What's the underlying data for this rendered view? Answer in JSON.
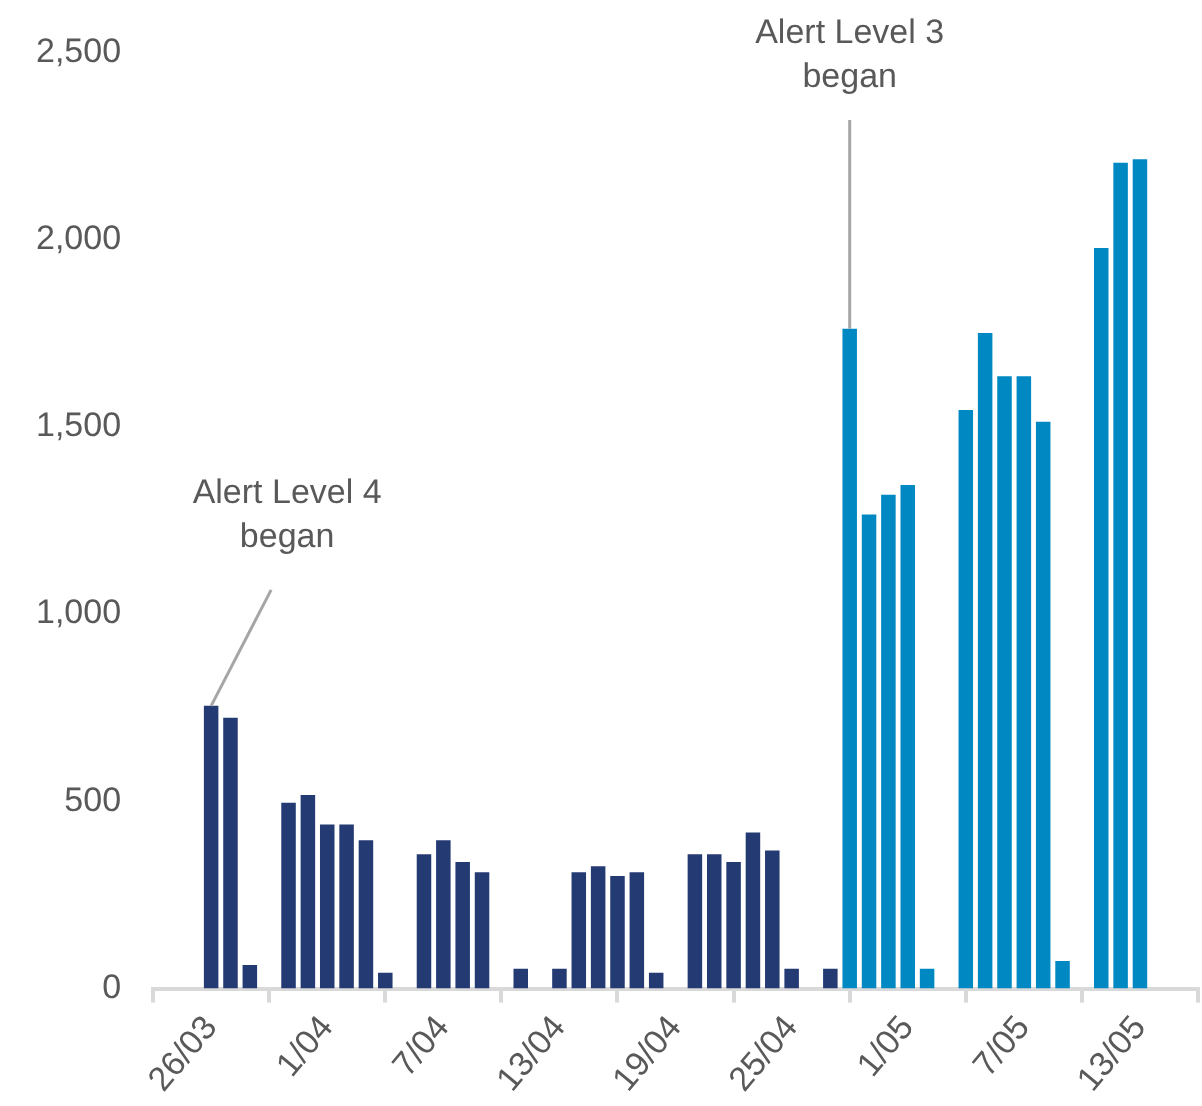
{
  "chart_data": {
    "type": "bar",
    "x": [
      "--03-26",
      "--03-27",
      "--03-28",
      "--03-29",
      "--03-30",
      "--03-31",
      "--04-01",
      "--04-02",
      "--04-03",
      "--04-04",
      "--04-05",
      "--04-06",
      "--04-07",
      "--04-08",
      "--04-09",
      "--04-10",
      "--04-11",
      "--04-12",
      "--04-13",
      "--04-14",
      "--04-15",
      "--04-16",
      "--04-17",
      "--04-18",
      "--04-19",
      "--04-20",
      "--04-21",
      "--04-22",
      "--04-23",
      "--04-24",
      "--04-25",
      "--04-26",
      "--04-27",
      "--04-28",
      "--04-29",
      "--04-30",
      "--05-01",
      "--05-02",
      "--05-03",
      "--05-04",
      "--05-05",
      "--05-06",
      "--05-07",
      "--05-08",
      "--05-09",
      "--05-10",
      "--05-11",
      "--05-12",
      "--05-13"
    ],
    "values": [
      755,
      723,
      63,
      null,
      496,
      517,
      438,
      438,
      396,
      42,
      null,
      359,
      396,
      338,
      311,
      null,
      53,
      null,
      53,
      311,
      327,
      301,
      311,
      42,
      null,
      359,
      359,
      338,
      417,
      369,
      53,
      null,
      53,
      1762,
      1266,
      1319,
      1345,
      53,
      null,
      1545,
      1751,
      1635,
      1635,
      1514,
      74,
      null,
      1978,
      2205,
      2215
    ],
    "colors": [
      "#243a73",
      "#243a73",
      "#243a73",
      "#243a73",
      "#243a73",
      "#243a73",
      "#243a73",
      "#243a73",
      "#243a73",
      "#243a73",
      "#243a73",
      "#243a73",
      "#243a73",
      "#243a73",
      "#243a73",
      "#243a73",
      "#243a73",
      "#243a73",
      "#243a73",
      "#243a73",
      "#243a73",
      "#243a73",
      "#243a73",
      "#243a73",
      "#243a73",
      "#243a73",
      "#243a73",
      "#243a73",
      "#243a73",
      "#243a73",
      "#243a73",
      "#243a73",
      "#243a73",
      "#0088c2",
      "#0088c2",
      "#0088c2",
      "#0088c2",
      "#0088c2",
      "#0088c2",
      "#0088c2",
      "#0088c2",
      "#0088c2",
      "#0088c2",
      "#0088c2",
      "#0088c2",
      "#0088c2",
      "#0088c2",
      "#0088c2",
      "#0088c2"
    ],
    "xlim": [
      "--03-26",
      "--05-13"
    ],
    "xticks": [
      {
        "value": "--03-26",
        "label": "26/03"
      },
      {
        "value": "--04-01",
        "label": "1/04"
      },
      {
        "value": "--04-07",
        "label": "7/04"
      },
      {
        "value": "--04-13",
        "label": "13/04"
      },
      {
        "value": "--04-19",
        "label": "19/04"
      },
      {
        "value": "--04-25",
        "label": "25/04"
      },
      {
        "value": "--05-01",
        "label": "1/05"
      },
      {
        "value": "--05-07",
        "label": "7/05"
      },
      {
        "value": "--05-13",
        "label": "13/05"
      }
    ],
    "ylim": [
      0,
      2500
    ],
    "yticks": [
      0,
      500,
      {
        "value": 1000,
        "label": "1,000"
      },
      {
        "value": 1500,
        "label": "1,500"
      },
      {
        "value": 2000,
        "label": "2,000"
      },
      {
        "value": 2500,
        "label": "2,500"
      }
    ],
    "grid": false,
    "legend": false,
    "annotations": [
      {
        "text": "Alert Level 4\nbegan",
        "x": "--03-26",
        "y": 755
      },
      {
        "text": "Alert Level 3\nbegan",
        "x": "--04-28",
        "y": 1762
      }
    ]
  }
}
